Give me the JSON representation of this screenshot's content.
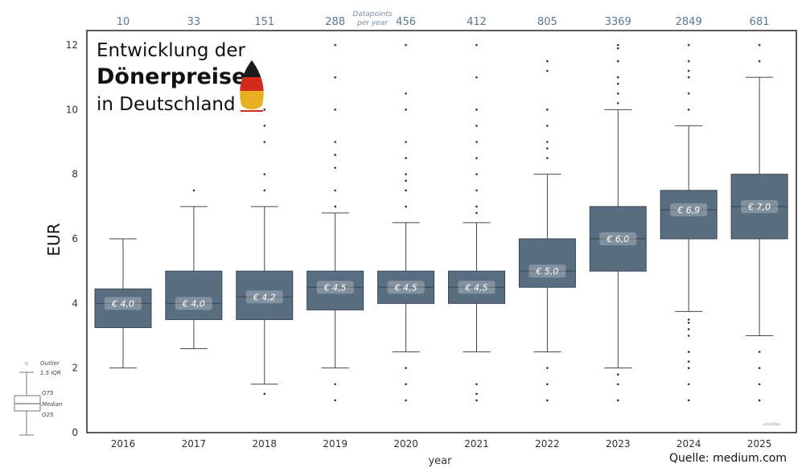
{
  "chart_data": {
    "type": "box",
    "title_lines": [
      "Entwicklung der",
      "Dönerpreise",
      "in Deutschland"
    ],
    "xlabel": "year",
    "ylabel": "EUR",
    "ylim": [
      0,
      12
    ],
    "yticks": [
      0,
      2,
      4,
      6,
      8,
      10,
      12
    ],
    "grid": false,
    "box_color": "#5a6e82",
    "count_color": "#5a7894",
    "counts_label": [
      "Datapoints",
      "per year"
    ],
    "source": "Quelle: medium.com",
    "watermark": "u/IceSea",
    "legend": {
      "outlier": "Outlier",
      "whisker": "1.5 IQR",
      "q75": "Q75",
      "median": "Median",
      "q25": "Q25"
    },
    "categories": [
      "2016",
      "2017",
      "2018",
      "2019",
      "2020",
      "2021",
      "2022",
      "2023",
      "2024",
      "2025"
    ],
    "counts": [
      "10",
      "33",
      "151",
      "288",
      "456",
      "412",
      "805",
      "3369",
      "2849",
      "681"
    ],
    "median_labels": [
      "€ 4,0",
      "€ 4,0",
      "€ 4,2",
      "€ 4,5",
      "€ 4,5",
      "€ 4,5",
      "€ 5,0",
      "€ 6,0",
      "€ 6,9",
      "€ 7,0"
    ],
    "boxes": [
      {
        "q1": 3.25,
        "median": 4.0,
        "q3": 4.45,
        "low": 2.0,
        "high": 6.0,
        "outliers": []
      },
      {
        "q1": 3.5,
        "median": 4.0,
        "q3": 5.0,
        "low": 2.6,
        "high": 7.0,
        "outliers": [
          7.5
        ]
      },
      {
        "q1": 3.5,
        "median": 4.2,
        "q3": 5.0,
        "low": 1.5,
        "high": 7.0,
        "outliers": [
          1.2,
          7.5,
          8,
          9,
          9.5,
          10
        ]
      },
      {
        "q1": 3.8,
        "median": 4.5,
        "q3": 5.0,
        "low": 2.0,
        "high": 6.8,
        "outliers": [
          1,
          1.5,
          7,
          7.5,
          8.2,
          8.6,
          9,
          10,
          11,
          12
        ]
      },
      {
        "q1": 4.0,
        "median": 4.5,
        "q3": 5.0,
        "low": 2.5,
        "high": 6.5,
        "outliers": [
          1,
          1.5,
          2,
          7,
          7.5,
          7.8,
          8,
          8.5,
          9,
          10,
          10.5,
          12
        ]
      },
      {
        "q1": 4.0,
        "median": 4.5,
        "q3": 5.0,
        "low": 2.5,
        "high": 6.5,
        "outliers": [
          1,
          1.2,
          1.5,
          6.8,
          7,
          7.5,
          8,
          8.5,
          9,
          9.5,
          10,
          11,
          12
        ]
      },
      {
        "q1": 4.5,
        "median": 5.0,
        "q3": 6.0,
        "low": 2.5,
        "high": 8.0,
        "outliers": [
          1,
          1.5,
          2,
          8.5,
          8.8,
          9,
          9.5,
          10,
          11.2,
          11.5
        ]
      },
      {
        "q1": 5.0,
        "median": 6.0,
        "q3": 7.0,
        "low": 2.0,
        "high": 10.0,
        "outliers": [
          1,
          1.5,
          1.8,
          10.2,
          10.5,
          10.8,
          11,
          11.5,
          11.9,
          12
        ]
      },
      {
        "q1": 6.0,
        "median": 6.9,
        "q3": 7.5,
        "low": 3.75,
        "high": 9.5,
        "outliers": [
          1,
          1.5,
          2,
          2.2,
          2.5,
          3,
          3.2,
          3.4,
          3.5,
          10,
          10.5,
          11,
          11.2,
          11.5,
          12
        ]
      },
      {
        "q1": 6.0,
        "median": 7.0,
        "q3": 8.0,
        "low": 3.0,
        "high": 11.0,
        "outliers": [
          1,
          1.5,
          2,
          2.5,
          11.5,
          12
        ]
      }
    ]
  }
}
